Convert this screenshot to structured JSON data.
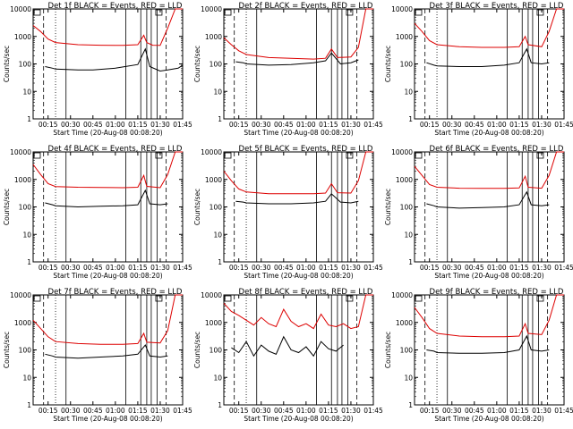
{
  "chart_data": [
    {
      "type": "line",
      "title": "Det 1f BLACK = Events, RED = LLD",
      "xlabel": "Start Time (20-Aug-08 00:08:20)",
      "ylabel": "Counts/sec",
      "xticks": [
        "00:15",
        "00:30",
        "00:45",
        "01:00",
        "01:15",
        "01:30",
        "01:45"
      ],
      "yticks": [
        "1",
        "10",
        "100",
        "1000",
        "10000"
      ],
      "ylim": [
        1,
        10000
      ],
      "yscale": "log",
      "series": [
        {
          "name": "Events",
          "color": "#000000",
          "x": [
            0.08,
            0.13,
            0.15,
            0.3,
            0.4,
            0.55,
            0.7,
            0.75,
            0.78,
            0.85,
            0.9,
            0.97,
            1.0
          ],
          "y": [
            80,
            70,
            65,
            60,
            60,
            70,
            95,
            350,
            80,
            55,
            60,
            70,
            90
          ]
        },
        {
          "name": "LLD",
          "color": "#dd0000",
          "x": [
            0.0,
            0.05,
            0.1,
            0.15,
            0.3,
            0.45,
            0.6,
            0.7,
            0.74,
            0.76,
            0.8,
            0.85,
            0.9,
            0.95,
            1.0
          ],
          "y": [
            2500,
            1500,
            800,
            600,
            500,
            480,
            470,
            500,
            1100,
            600,
            480,
            470,
            2000,
            10000,
            10000
          ]
        }
      ]
    },
    {
      "type": "line",
      "title": "Det 2f BLACK = Events, RED = LLD",
      "xlabel": "Start Time (20-Aug-08 00:08:20)",
      "ylabel": "Counts/sec",
      "xticks": [
        "00:15",
        "00:30",
        "00:45",
        "01:00",
        "01:15",
        "01:30",
        "01:45"
      ],
      "yticks": [
        "1",
        "10",
        "100",
        "1000",
        "10000"
      ],
      "ylim": [
        1,
        10000
      ],
      "yscale": "log",
      "series": [
        {
          "name": "Events",
          "color": "#000000",
          "x": [
            0.08,
            0.13,
            0.15,
            0.3,
            0.45,
            0.6,
            0.68,
            0.72,
            0.78,
            0.85,
            0.9
          ],
          "y": [
            120,
            110,
            100,
            90,
            95,
            110,
            130,
            250,
            100,
            110,
            140
          ]
        },
        {
          "name": "LLD",
          "color": "#dd0000",
          "x": [
            0.0,
            0.05,
            0.1,
            0.15,
            0.3,
            0.45,
            0.6,
            0.68,
            0.72,
            0.76,
            0.85,
            0.9,
            0.95,
            1.0
          ],
          "y": [
            900,
            500,
            300,
            220,
            170,
            160,
            150,
            160,
            350,
            170,
            180,
            400,
            10000,
            10000
          ]
        }
      ]
    },
    {
      "type": "line",
      "title": "Det 3f BLACK = Events, RED = LLD",
      "xlabel": "Start Time (20-Aug-08 00:08:20)",
      "ylabel": "Counts/sec",
      "xticks": [
        "00:15",
        "00:30",
        "00:45",
        "01:00",
        "01:15",
        "01:30",
        "01:45"
      ],
      "yticks": [
        "1",
        "10",
        "100",
        "1000",
        "10000"
      ],
      "ylim": [
        1,
        10000
      ],
      "yscale": "log",
      "series": [
        {
          "name": "Events",
          "color": "#000000",
          "x": [
            0.08,
            0.13,
            0.15,
            0.3,
            0.45,
            0.6,
            0.7,
            0.75,
            0.78,
            0.85,
            0.9
          ],
          "y": [
            110,
            90,
            85,
            80,
            80,
            90,
            110,
            350,
            110,
            100,
            110
          ]
        },
        {
          "name": "LLD",
          "color": "#dd0000",
          "x": [
            0.0,
            0.05,
            0.1,
            0.15,
            0.3,
            0.45,
            0.6,
            0.7,
            0.74,
            0.76,
            0.85,
            0.9,
            0.95,
            1.0
          ],
          "y": [
            3000,
            1500,
            700,
            500,
            420,
            400,
            400,
            420,
            1000,
            500,
            420,
            1500,
            10000,
            10000
          ]
        }
      ]
    },
    {
      "type": "line",
      "title": "Det 4f BLACK = Events, RED = LLD",
      "xlabel": "Start Time (20-Aug-08 00:08:20)",
      "ylabel": "Counts/sec",
      "xticks": [
        "00:15",
        "00:30",
        "00:45",
        "01:00",
        "01:15",
        "01:30",
        "01:45"
      ],
      "yticks": [
        "1",
        "10",
        "100",
        "1000",
        "10000"
      ],
      "ylim": [
        1,
        10000
      ],
      "yscale": "log",
      "series": [
        {
          "name": "Events",
          "color": "#000000",
          "x": [
            0.08,
            0.13,
            0.15,
            0.3,
            0.45,
            0.6,
            0.7,
            0.75,
            0.78,
            0.85,
            0.9
          ],
          "y": [
            140,
            120,
            110,
            100,
            105,
            110,
            120,
            400,
            130,
            120,
            130
          ]
        },
        {
          "name": "LLD",
          "color": "#dd0000",
          "x": [
            0.0,
            0.05,
            0.1,
            0.15,
            0.3,
            0.45,
            0.6,
            0.7,
            0.74,
            0.76,
            0.85,
            0.9,
            0.95,
            1.0
          ],
          "y": [
            3500,
            1500,
            700,
            550,
            520,
            510,
            500,
            520,
            1400,
            560,
            500,
            1500,
            10000,
            10000
          ]
        }
      ]
    },
    {
      "type": "line",
      "title": "Det 5f BLACK = Events, RED = LLD",
      "xlabel": "Start Time (20-Aug-08 00:08:20)",
      "ylabel": "Counts/sec",
      "xticks": [
        "00:15",
        "00:30",
        "00:45",
        "01:00",
        "01:15",
        "01:30",
        "01:45"
      ],
      "yticks": [
        "1",
        "10",
        "100",
        "1000",
        "10000"
      ],
      "ylim": [
        1,
        10000
      ],
      "yscale": "log",
      "series": [
        {
          "name": "Events",
          "color": "#000000",
          "x": [
            0.08,
            0.13,
            0.15,
            0.3,
            0.45,
            0.6,
            0.68,
            0.72,
            0.78,
            0.85,
            0.9
          ],
          "y": [
            160,
            150,
            140,
            130,
            130,
            140,
            160,
            300,
            150,
            140,
            160
          ]
        },
        {
          "name": "LLD",
          "color": "#dd0000",
          "x": [
            0.0,
            0.05,
            0.1,
            0.15,
            0.3,
            0.45,
            0.6,
            0.68,
            0.72,
            0.76,
            0.85,
            0.9,
            0.95,
            1.0
          ],
          "y": [
            2000,
            900,
            450,
            350,
            300,
            300,
            300,
            320,
            700,
            330,
            320,
            900,
            10000,
            10000
          ]
        }
      ]
    },
    {
      "type": "line",
      "title": "Det 6f BLACK = Events, RED = LLD",
      "xlabel": "Start Time (20-Aug-08 00:08:20)",
      "ylabel": "Counts/sec",
      "xticks": [
        "00:15",
        "00:30",
        "00:45",
        "01:00",
        "01:15",
        "01:30",
        "01:45"
      ],
      "yticks": [
        "1",
        "10",
        "100",
        "1000",
        "10000"
      ],
      "ylim": [
        1,
        10000
      ],
      "yscale": "log",
      "series": [
        {
          "name": "Events",
          "color": "#000000",
          "x": [
            0.08,
            0.13,
            0.15,
            0.3,
            0.45,
            0.6,
            0.7,
            0.75,
            0.78,
            0.85,
            0.9
          ],
          "y": [
            130,
            110,
            100,
            90,
            95,
            100,
            120,
            350,
            120,
            110,
            120
          ]
        },
        {
          "name": "LLD",
          "color": "#dd0000",
          "x": [
            0.0,
            0.05,
            0.1,
            0.15,
            0.3,
            0.45,
            0.6,
            0.7,
            0.74,
            0.76,
            0.85,
            0.9,
            0.95,
            1.0
          ],
          "y": [
            3000,
            1400,
            650,
            520,
            480,
            470,
            470,
            490,
            1300,
            520,
            480,
            1400,
            10000,
            10000
          ]
        }
      ]
    },
    {
      "type": "line",
      "title": "Det 7f BLACK = Events, RED = LLD",
      "xlabel": "Start Time (20-Aug-08 00:08:20)",
      "ylabel": "Counts/sec",
      "xticks": [
        "00:15",
        "00:30",
        "00:45",
        "01:00",
        "01:15",
        "01:30",
        "01:45"
      ],
      "yticks": [
        "1",
        "10",
        "100",
        "1000",
        "10000"
      ],
      "ylim": [
        1,
        10000
      ],
      "yscale": "log",
      "series": [
        {
          "name": "Events",
          "color": "#000000",
          "x": [
            0.08,
            0.13,
            0.15,
            0.3,
            0.45,
            0.6,
            0.7,
            0.75,
            0.78,
            0.85,
            0.9
          ],
          "y": [
            70,
            60,
            55,
            50,
            55,
            60,
            70,
            150,
            60,
            55,
            60
          ]
        },
        {
          "name": "LLD",
          "color": "#dd0000",
          "x": [
            0.0,
            0.05,
            0.1,
            0.15,
            0.3,
            0.45,
            0.6,
            0.7,
            0.74,
            0.76,
            0.85,
            0.9,
            0.95,
            1.0
          ],
          "y": [
            1200,
            600,
            300,
            200,
            170,
            160,
            160,
            170,
            400,
            190,
            180,
            500,
            10000,
            10000
          ]
        }
      ]
    },
    {
      "type": "line",
      "title": "Det 8f BLACK = Events, RED = LLD",
      "xlabel": "Start Time (20-Aug-08 00:08:20)",
      "ylabel": "Counts/sec",
      "xticks": [
        "00:15",
        "00:30",
        "00:45",
        "01:00",
        "01:15",
        "01:30",
        "01:45"
      ],
      "yticks": [
        "1",
        "10",
        "100",
        "1000",
        "10000"
      ],
      "ylim": [
        1,
        10000
      ],
      "yscale": "log",
      "series": [
        {
          "name": "Events",
          "color": "#000000",
          "x": [
            0.05,
            0.1,
            0.15,
            0.2,
            0.25,
            0.3,
            0.35,
            0.4,
            0.45,
            0.5,
            0.55,
            0.6,
            0.65,
            0.7,
            0.75,
            0.8
          ],
          "y": [
            120,
            80,
            200,
            60,
            150,
            90,
            70,
            300,
            100,
            80,
            130,
            60,
            200,
            110,
            90,
            150
          ]
        },
        {
          "name": "LLD",
          "color": "#dd0000",
          "x": [
            0.0,
            0.05,
            0.1,
            0.15,
            0.2,
            0.25,
            0.3,
            0.35,
            0.4,
            0.45,
            0.5,
            0.55,
            0.6,
            0.65,
            0.7,
            0.75,
            0.8,
            0.85,
            0.9,
            0.95,
            1.0
          ],
          "y": [
            5000,
            2500,
            1800,
            1200,
            800,
            1500,
            900,
            700,
            3000,
            1100,
            700,
            900,
            600,
            2000,
            800,
            700,
            900,
            600,
            700,
            10000,
            10000
          ]
        }
      ]
    },
    {
      "type": "line",
      "title": "Det 9f BLACK = Events, RED = LLD",
      "xlabel": "Start Time (20-Aug-08 00:08:20)",
      "ylabel": "Counts/sec",
      "xticks": [
        "00:15",
        "00:30",
        "00:45",
        "01:00",
        "01:15",
        "01:30",
        "01:45"
      ],
      "yticks": [
        "1",
        "10",
        "100",
        "1000",
        "10000"
      ],
      "ylim": [
        1,
        10000
      ],
      "yscale": "log",
      "series": [
        {
          "name": "Events",
          "color": "#000000",
          "x": [
            0.08,
            0.13,
            0.15,
            0.3,
            0.45,
            0.6,
            0.7,
            0.75,
            0.78,
            0.85,
            0.9
          ],
          "y": [
            100,
            90,
            80,
            75,
            75,
            80,
            100,
            320,
            100,
            90,
            100
          ]
        },
        {
          "name": "LLD",
          "color": "#dd0000",
          "x": [
            0.0,
            0.05,
            0.1,
            0.15,
            0.3,
            0.45,
            0.6,
            0.7,
            0.74,
            0.76,
            0.85,
            0.9,
            0.95,
            1.0
          ],
          "y": [
            3500,
            1500,
            600,
            400,
            320,
            300,
            300,
            320,
            900,
            400,
            360,
            1200,
            10000,
            10000
          ]
        }
      ]
    }
  ]
}
